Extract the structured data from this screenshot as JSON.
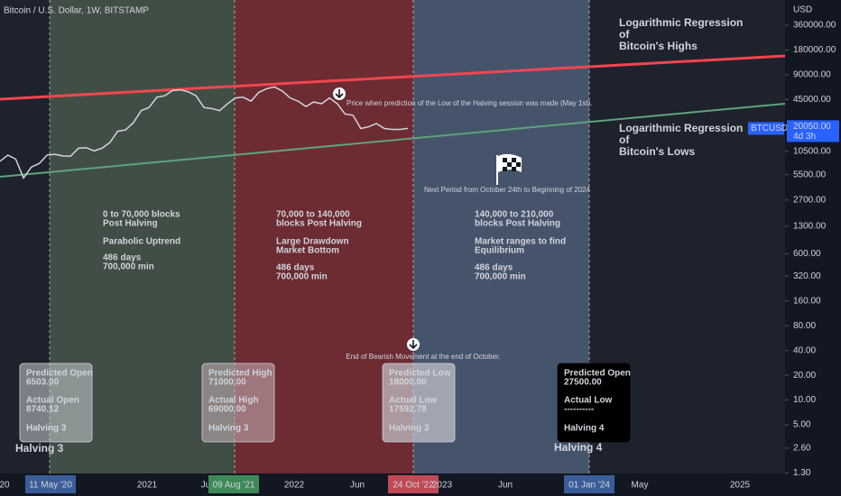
{
  "header": {
    "title": "Bitcoin / U.S. Dollar, 1W, BITSTAMP",
    "currency": "USD"
  },
  "chart_data": {
    "type": "line",
    "yscale": "log",
    "grid": false,
    "ylim": [
      1.28,
      730000
    ],
    "yticks": [
      {
        "value": 360000,
        "label": "360000.00"
      },
      {
        "value": 180000,
        "label": "180000.00"
      },
      {
        "value": 90000,
        "label": "90000.00"
      },
      {
        "value": 45000,
        "label": "45000.00"
      },
      {
        "value": 10500,
        "label": "10500.00"
      },
      {
        "value": 5500,
        "label": "5500.00"
      },
      {
        "value": 2700,
        "label": "2700.00"
      },
      {
        "value": 1300,
        "label": "1300.00"
      },
      {
        "value": 600,
        "label": "600.00"
      },
      {
        "value": 320,
        "label": "320.00"
      },
      {
        "value": 160,
        "label": "160.00"
      },
      {
        "value": 80,
        "label": "80.00"
      },
      {
        "value": 40,
        "label": "40.00"
      },
      {
        "value": 20,
        "label": "20.00"
      },
      {
        "value": 10,
        "label": "10.00"
      },
      {
        "value": 5,
        "label": "5.00"
      },
      {
        "value": 2.6,
        "label": "2.60"
      },
      {
        "value": 1.3,
        "label": "1.30"
      }
    ],
    "series": [
      {
        "name": "BTCUSD",
        "color": "#d1d4dc",
        "values": [
          8000,
          9500,
          8500,
          5000,
          6800,
          7500,
          9500,
          9700,
          9300,
          9200,
          11500,
          11700,
          10700,
          11500,
          13500,
          18500,
          19200,
          23500,
          33000,
          36000,
          48000,
          50000,
          58000,
          59000,
          56000,
          50000,
          36000,
          35000,
          33000,
          40000,
          47000,
          48000,
          43000,
          55000,
          61000,
          64000,
          57000,
          47000,
          43000,
          37000,
          42000,
          40000,
          47000,
          40000,
          30000,
          29000,
          20000,
          21000,
          23000,
          20000,
          19500,
          19500,
          20050
        ],
        "value_labels": {
          "52": "20050.00"
        }
      }
    ],
    "countdown": "4d 3h",
    "x_labels": [
      "20",
      "11 May '20",
      "2021",
      "Ju",
      "09 Aug '21",
      "2022",
      "Jun",
      "24 Oct '22",
      "2023",
      "Jun",
      "01 Jan '24",
      "May",
      "2025"
    ]
  },
  "regressions": [
    {
      "lines": [
        "Logarithmic Regression",
        "of",
        "Bitcoin's Highs"
      ]
    },
    {
      "lines": [
        "Logarithmic Regression",
        "of",
        "Bitcoin's Lows"
      ]
    }
  ],
  "phases": [
    {
      "lines": [
        "0 to 70,000 blocks",
        "Post Halving",
        "Parabolic Uptrend",
        "486 days",
        "700,000 min"
      ]
    },
    {
      "lines": [
        "70,000 to 140,000",
        "blocks Post Halving",
        "Large Drawdown",
        "Market Bottom",
        "486 days",
        "700,000 min"
      ]
    },
    {
      "lines": [
        "140,000 to 210,000",
        "blocks Post Halving",
        "Market ranges to find",
        "Equilibrium",
        "486 days",
        "700,000 min"
      ]
    }
  ],
  "annotations": [
    "Price when prediction of the Low of the Halving session was made (May 1st).",
    "Next Period from October 24th to Beginning of 2024",
    "End of Bearish Movement at the end of October."
  ],
  "boxes": [
    {
      "lines": [
        "Predicted Open",
        "6503.00",
        "Actual Open",
        "8740.12",
        "Halving 3"
      ]
    },
    {
      "lines": [
        "Predicted High",
        "71000.00",
        "Actual High",
        "69000.00",
        "Halving 3"
      ]
    },
    {
      "lines": [
        "Predicted Low",
        "18000.00",
        "Actual Low",
        "17592.78",
        "Halving 3"
      ]
    },
    {
      "lines": [
        "Predicted Open",
        "27500.00",
        "Actual Low",
        "----------",
        "Halving 4"
      ]
    }
  ],
  "halvings": [
    "Halving 3",
    "Halving 4"
  ]
}
